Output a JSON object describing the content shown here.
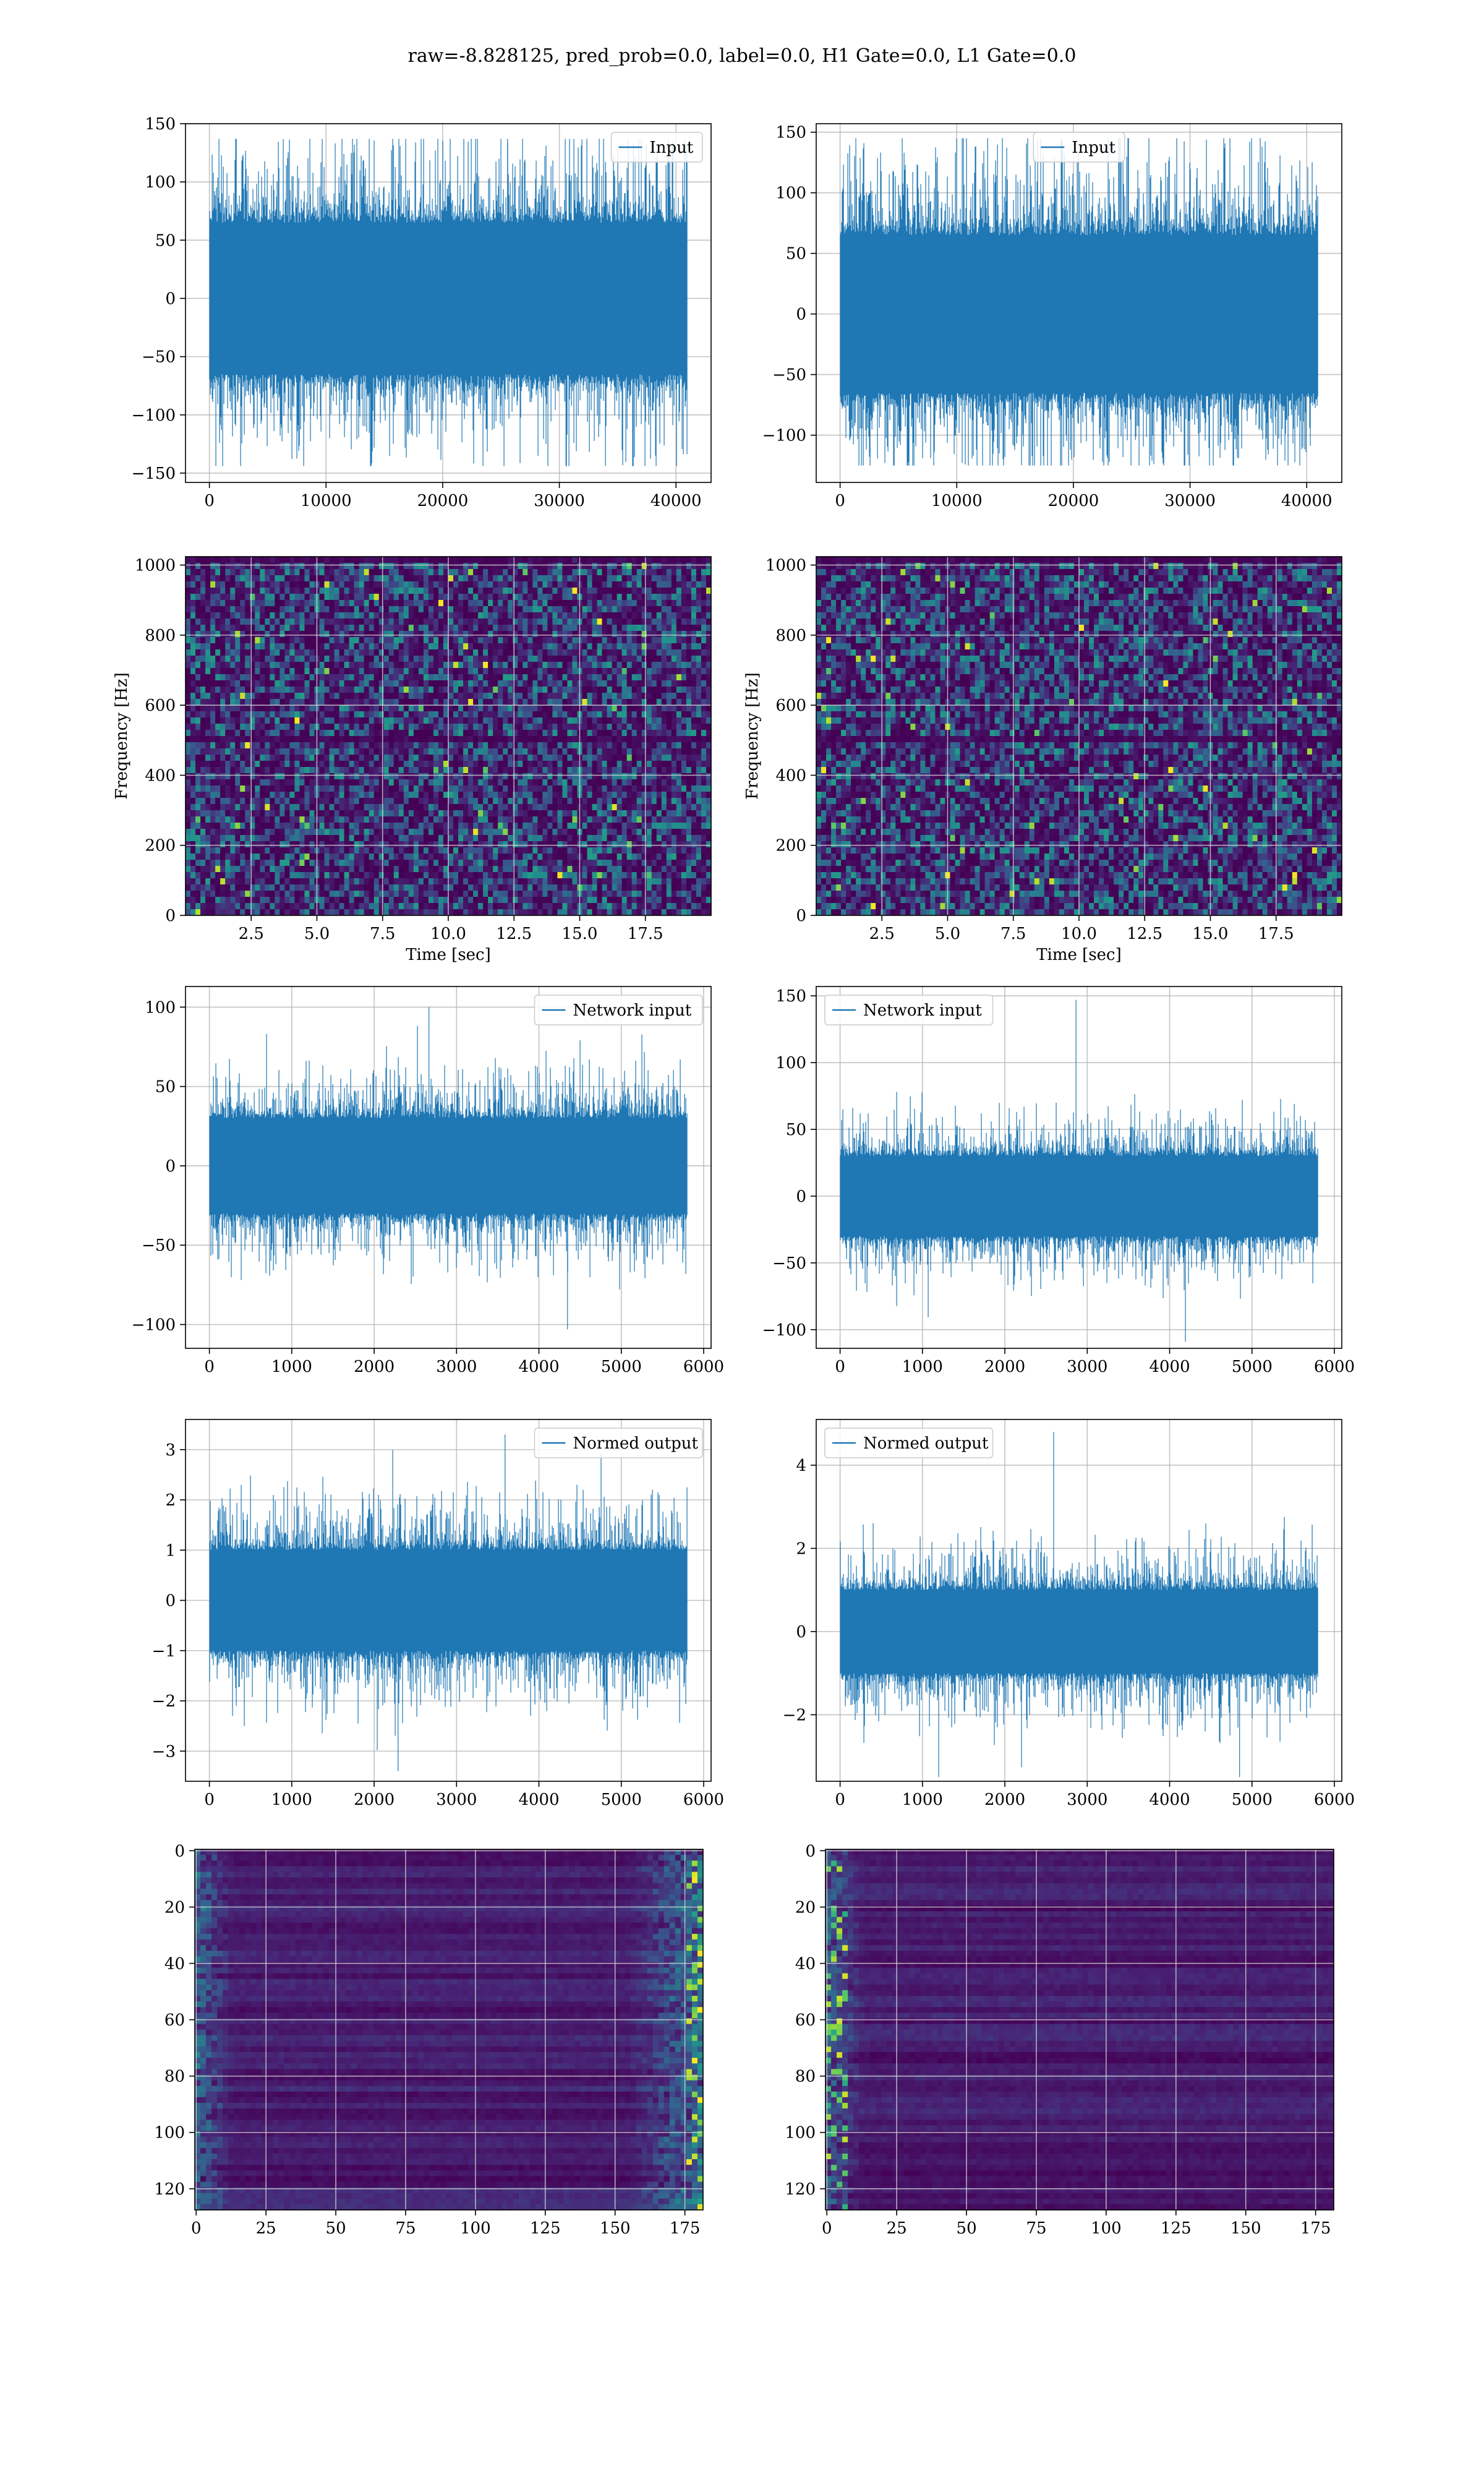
{
  "figure": {
    "title": "raw=-8.828125, pred_prob=0.0, label=0.0, H1 Gate=0.0, L1 Gate=0.0",
    "colors": {
      "line": "#1f77b4",
      "grid": "#b0b0b0",
      "cmap_low": "#440154",
      "cmap_mid": "#21918c",
      "cmap_high": "#fde725"
    }
  },
  "chart_data": [
    {
      "id": "input-h1",
      "type": "line",
      "title": "",
      "legend": "Input",
      "legend_loc": "upper right",
      "xlabel": "",
      "ylabel": "",
      "xlim": [
        -2048,
        43008
      ],
      "ylim": [
        -158,
        150
      ],
      "xticks": [
        0,
        10000,
        20000,
        30000,
        40000
      ],
      "xtick_labels": [
        "0",
        "10000",
        "20000",
        "30000",
        "40000"
      ],
      "yticks": [
        -150,
        -100,
        -50,
        0,
        50,
        100,
        150
      ],
      "ytick_labels": [
        "−150",
        "−100",
        "−50",
        "0",
        "50",
        "100",
        "150"
      ],
      "series": {
        "n": 40960,
        "band": [
          -65,
          65
        ],
        "peak_max": 137,
        "peak_min": -144
      }
    },
    {
      "id": "input-l1",
      "type": "line",
      "title": "",
      "legend": "Input",
      "legend_loc": "upper center",
      "xlabel": "",
      "ylabel": "",
      "xlim": [
        -2048,
        43008
      ],
      "ylim": [
        -139,
        157
      ],
      "xticks": [
        0,
        10000,
        20000,
        30000,
        40000
      ],
      "xtick_labels": [
        "0",
        "10000",
        "20000",
        "30000",
        "40000"
      ],
      "yticks": [
        -100,
        -50,
        0,
        50,
        100,
        150
      ],
      "ytick_labels": [
        "−100",
        "−50",
        "0",
        "50",
        "100",
        "150"
      ],
      "series": {
        "n": 40960,
        "band": [
          -65,
          65
        ],
        "peak_max": 145,
        "peak_min": -125
      }
    },
    {
      "id": "spec-h1",
      "type": "heatmap",
      "title": "",
      "xlabel": "Time [sec]",
      "ylabel": "Frequency [Hz]",
      "xlim": [
        0,
        20
      ],
      "ylim": [
        0,
        1024
      ],
      "xticks": [
        2.5,
        5.0,
        7.5,
        10.0,
        12.5,
        15.0,
        17.5
      ],
      "xtick_labels": [
        "2.5",
        "5.0",
        "7.5",
        "10.0",
        "12.5",
        "15.0",
        "17.5"
      ],
      "yticks": [
        0,
        200,
        400,
        600,
        800,
        1000
      ],
      "ytick_labels": [
        "0",
        "200",
        "400",
        "600",
        "800",
        "1000"
      ]
    },
    {
      "id": "spec-l1",
      "type": "heatmap",
      "title": "",
      "xlabel": "Time [sec]",
      "ylabel": "Frequency [Hz]",
      "xlim": [
        0,
        20
      ],
      "ylim": [
        0,
        1024
      ],
      "xticks": [
        2.5,
        5.0,
        7.5,
        10.0,
        12.5,
        15.0,
        17.5
      ],
      "xtick_labels": [
        "2.5",
        "5.0",
        "7.5",
        "10.0",
        "12.5",
        "15.0",
        "17.5"
      ],
      "yticks": [
        0,
        200,
        400,
        600,
        800,
        1000
      ],
      "ytick_labels": [
        "0",
        "200",
        "400",
        "600",
        "800",
        "1000"
      ]
    },
    {
      "id": "netin-h1",
      "type": "line",
      "title": "",
      "legend": "Network input",
      "legend_loc": "upper right",
      "xlabel": "",
      "ylabel": "",
      "xlim": [
        -290,
        6090
      ],
      "ylim": [
        -115,
        113
      ],
      "xticks": [
        0,
        1000,
        2000,
        3000,
        4000,
        5000,
        6000
      ],
      "xtick_labels": [
        "0",
        "1000",
        "2000",
        "3000",
        "4000",
        "5000",
        "6000"
      ],
      "yticks": [
        -100,
        -50,
        0,
        50,
        100
      ],
      "ytick_labels": [
        "−100",
        "−50",
        "0",
        "50",
        "100"
      ],
      "series": {
        "n": 5800,
        "band": [
          -30,
          30
        ],
        "peak_max": 100,
        "peak_min": -103
      }
    },
    {
      "id": "netin-l1",
      "type": "line",
      "title": "",
      "legend": "Network input",
      "legend_loc": "upper left",
      "xlabel": "",
      "ylabel": "",
      "xlim": [
        -290,
        6090
      ],
      "ylim": [
        -114,
        157
      ],
      "xticks": [
        0,
        1000,
        2000,
        3000,
        4000,
        5000,
        6000
      ],
      "xtick_labels": [
        "0",
        "1000",
        "2000",
        "3000",
        "4000",
        "5000",
        "6000"
      ],
      "yticks": [
        -100,
        -50,
        0,
        50,
        100,
        150
      ],
      "ytick_labels": [
        "−100",
        "−50",
        "0",
        "50",
        "100",
        "150"
      ],
      "series": {
        "n": 5800,
        "band": [
          -30,
          30
        ],
        "peak_max": 147,
        "peak_min": -109
      }
    },
    {
      "id": "normed-h1",
      "type": "line",
      "title": "",
      "legend": "Normed output",
      "legend_loc": "upper right",
      "xlabel": "",
      "ylabel": "",
      "xlim": [
        -290,
        6090
      ],
      "ylim": [
        -3.6,
        3.6
      ],
      "xticks": [
        0,
        1000,
        2000,
        3000,
        4000,
        5000,
        6000
      ],
      "xtick_labels": [
        "0",
        "1000",
        "2000",
        "3000",
        "4000",
        "5000",
        "6000"
      ],
      "yticks": [
        -3,
        -2,
        -1,
        0,
        1,
        2,
        3
      ],
      "ytick_labels": [
        "−3",
        "−2",
        "−1",
        "0",
        "1",
        "2",
        "3"
      ],
      "series": {
        "n": 5800,
        "band": [
          -1.0,
          1.0
        ],
        "peak_max": 3.3,
        "peak_min": -3.4
      }
    },
    {
      "id": "normed-l1",
      "type": "line",
      "title": "",
      "legend": "Normed output",
      "legend_loc": "upper left",
      "xlabel": "",
      "ylabel": "",
      "xlim": [
        -290,
        6090
      ],
      "ylim": [
        -3.6,
        5.1
      ],
      "xticks": [
        0,
        1000,
        2000,
        3000,
        4000,
        5000,
        6000
      ],
      "xtick_labels": [
        "0",
        "1000",
        "2000",
        "3000",
        "4000",
        "5000",
        "6000"
      ],
      "yticks": [
        -2,
        0,
        2,
        4
      ],
      "ytick_labels": [
        "−2",
        "0",
        "2",
        "4"
      ],
      "series": {
        "n": 5800,
        "band": [
          -1.0,
          1.0
        ],
        "peak_max": 4.8,
        "peak_min": -3.5
      }
    },
    {
      "id": "feat-h1",
      "type": "heatmap",
      "title": "",
      "xlabel": "",
      "ylabel": "",
      "xlim": [
        -0.5,
        181.5
      ],
      "ylim": [
        127.5,
        -0.5
      ],
      "xticks": [
        0,
        25,
        50,
        75,
        100,
        125,
        150,
        175
      ],
      "xtick_labels": [
        "0",
        "25",
        "50",
        "75",
        "100",
        "125",
        "150",
        "175"
      ],
      "yticks": [
        0,
        20,
        40,
        60,
        80,
        100,
        120
      ],
      "ytick_labels": [
        "0",
        "20",
        "40",
        "60",
        "80",
        "100",
        "120"
      ]
    },
    {
      "id": "feat-l1",
      "type": "heatmap",
      "title": "",
      "xlabel": "",
      "ylabel": "",
      "xlim": [
        -0.5,
        181.5
      ],
      "ylim": [
        127.5,
        -0.5
      ],
      "xticks": [
        0,
        25,
        50,
        75,
        100,
        125,
        150,
        175
      ],
      "xtick_labels": [
        "0",
        "25",
        "50",
        "75",
        "100",
        "125",
        "150",
        "175"
      ],
      "yticks": [
        0,
        20,
        40,
        60,
        80,
        100,
        120
      ],
      "ytick_labels": [
        "0",
        "20",
        "40",
        "60",
        "80",
        "100",
        "120"
      ]
    }
  ]
}
